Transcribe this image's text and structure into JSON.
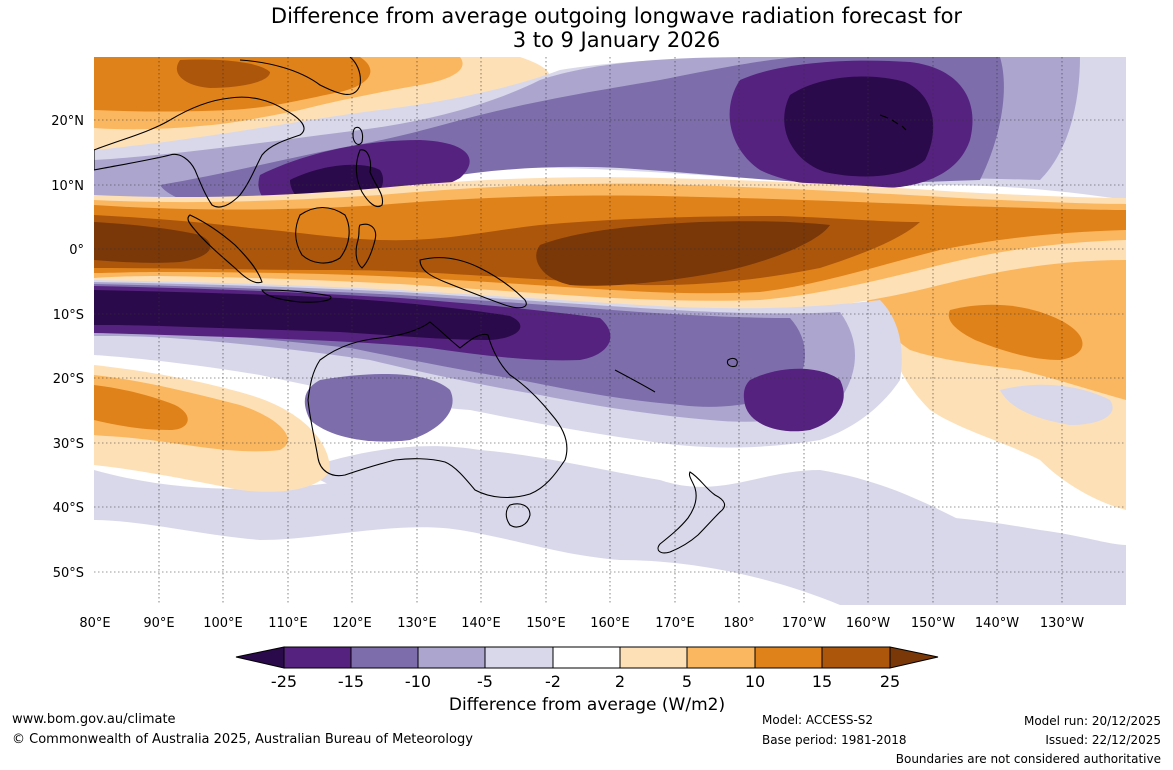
{
  "title": {
    "line1": "Difference from average outgoing longwave radiation forecast for",
    "line2": "3 to 9 January 2026"
  },
  "map": {
    "lat_labels": [
      "20°N",
      "10°N",
      "0°",
      "10°S",
      "20°S",
      "30°S",
      "40°S",
      "50°S"
    ],
    "lon_labels": [
      "80°E",
      "90°E",
      "100°E",
      "110°E",
      "120°E",
      "130°E",
      "140°E",
      "150°E",
      "160°E",
      "170°E",
      "180°",
      "170°W",
      "160°W",
      "150°W",
      "140°W",
      "130°W"
    ],
    "region": "Indo-Pacific: 80°E to 120°W, 30°N to 55°S"
  },
  "colorbar": {
    "title": "Difference from average (W/m2)",
    "tick_labels": [
      "-25",
      "-15",
      "-10",
      "-5",
      "-2",
      "2",
      "5",
      "10",
      "15",
      "25"
    ],
    "colors": [
      "#2a0a4a",
      "#56227f",
      "#7d6eab",
      "#aca6cf",
      "#d8d8ea",
      "#ffffff",
      "#fde0b6",
      "#fbb75f",
      "#e0821a",
      "#ab560b",
      "#7a3708"
    ]
  },
  "footer": {
    "website": "www.bom.gov.au/climate",
    "copyright": "© Commonwealth of Australia 2025, Australian Bureau of Meteorology",
    "model": "Model: ACCESS-S2",
    "base_period": "Base period: 1981-2018",
    "model_run": "Model run: 20/12/2025",
    "issued": "Issued: 22/12/2025",
    "disclaimer": "Boundaries are not considered authoritative"
  }
}
